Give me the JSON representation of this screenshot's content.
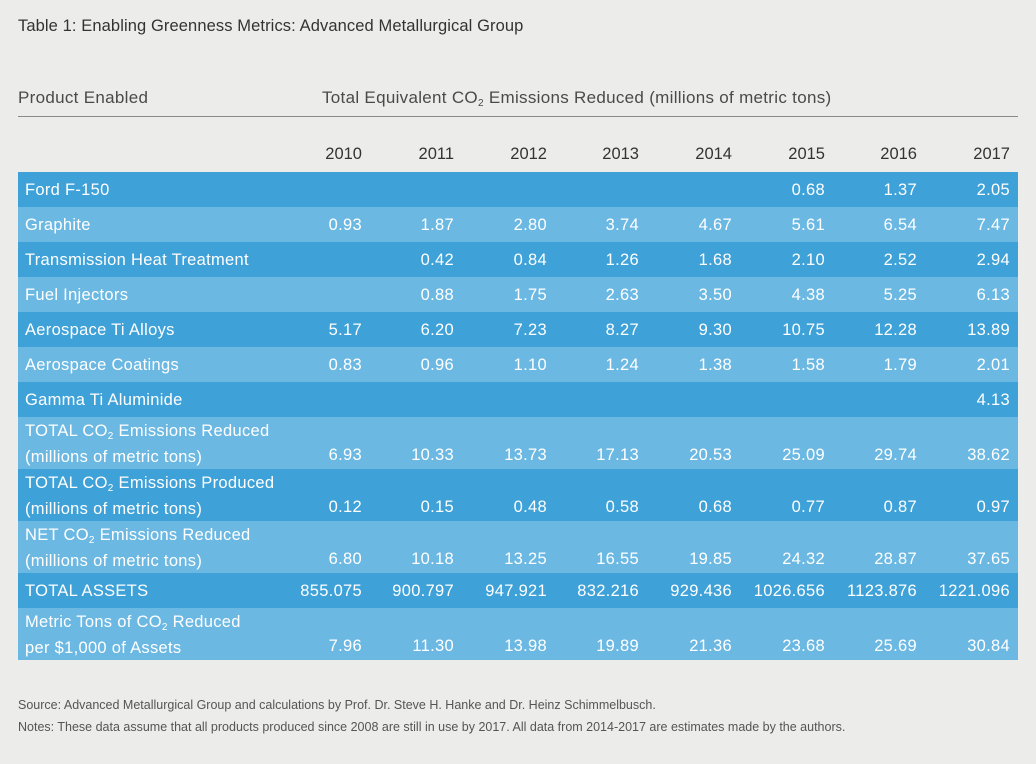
{
  "title": "Table 1: Enabling Greenness Metrics: Advanced Metallurgical Group",
  "header": {
    "product_col": "Product Enabled",
    "emissions_col_pre": "Total Equivalent CO",
    "emissions_col_sub": "2",
    "emissions_col_post": " Emissions Reduced (millions of metric tons)"
  },
  "chart_data": {
    "type": "table",
    "columns": [
      "2010",
      "2011",
      "2012",
      "2013",
      "2014",
      "2015",
      "2016",
      "2017"
    ],
    "rows": [
      {
        "label": [
          "Ford F-150"
        ],
        "values": [
          "",
          "",
          "",
          "",
          "",
          "0.68",
          "1.37",
          "2.05"
        ]
      },
      {
        "label": [
          "Graphite"
        ],
        "values": [
          "0.93",
          "1.87",
          "2.80",
          "3.74",
          "4.67",
          "5.61",
          "6.54",
          "7.47"
        ]
      },
      {
        "label": [
          "Transmission Heat Treatment"
        ],
        "values": [
          "",
          "0.42",
          "0.84",
          "1.26",
          "1.68",
          "2.10",
          "2.52",
          "2.94"
        ]
      },
      {
        "label": [
          "Fuel Injectors"
        ],
        "values": [
          "",
          "0.88",
          "1.75",
          "2.63",
          "3.50",
          "4.38",
          "5.25",
          "6.13"
        ]
      },
      {
        "label": [
          "Aerospace Ti Alloys"
        ],
        "values": [
          "5.17",
          "6.20",
          "7.23",
          "8.27",
          "9.30",
          "10.75",
          "12.28",
          "13.89"
        ]
      },
      {
        "label": [
          "Aerospace Coatings"
        ],
        "values": [
          "0.83",
          "0.96",
          "1.10",
          "1.24",
          "1.38",
          "1.58",
          "1.79",
          "2.01"
        ]
      },
      {
        "label": [
          "Gamma Ti Aluminide"
        ],
        "values": [
          "",
          "",
          "",
          "",
          "",
          "",
          "",
          "4.13"
        ]
      },
      {
        "label": [
          "TOTAL CO|2| Emissions Reduced",
          "(millions of metric tons)"
        ],
        "values": [
          "6.93",
          "10.33",
          "13.73",
          "17.13",
          "20.53",
          "25.09",
          "29.74",
          "38.62"
        ]
      },
      {
        "label": [
          "TOTAL CO|2| Emissions Produced",
          "(millions of metric tons)"
        ],
        "values": [
          "0.12",
          "0.15",
          "0.48",
          "0.58",
          "0.68",
          "0.77",
          "0.87",
          "0.97"
        ]
      },
      {
        "label": [
          "NET CO|2| Emissions Reduced",
          "(millions of metric tons)"
        ],
        "values": [
          "6.80",
          "10.18",
          "13.25",
          "16.55",
          "19.85",
          "24.32",
          "28.87",
          "37.65"
        ]
      },
      {
        "label": [
          "TOTAL ASSETS"
        ],
        "values": [
          "855.075",
          "900.797",
          "947.921",
          "832.216",
          "929.436",
          "1026.656",
          "1123.876",
          "1221.096"
        ]
      },
      {
        "label": [
          "Metric Tons of CO|2| Reduced",
          "per $1,000 of Assets"
        ],
        "values": [
          "7.96",
          "11.30",
          "13.98",
          "19.89",
          "21.36",
          "23.68",
          "25.69",
          "30.84"
        ]
      }
    ]
  },
  "colors": {
    "dark_row": "#3ea1d8",
    "light_row": "#6bb8e3",
    "background": "#ececea"
  },
  "notes": {
    "source": "Source: Advanced Metallurgical Group and calculations by Prof. Dr. Steve H. Hanke and Dr. Heinz Schimmelbusch.",
    "notes": "Notes: These data assume that all products produced since 2008 are still in use by 2017. All data from 2014-2017 are estimates made by the authors."
  }
}
